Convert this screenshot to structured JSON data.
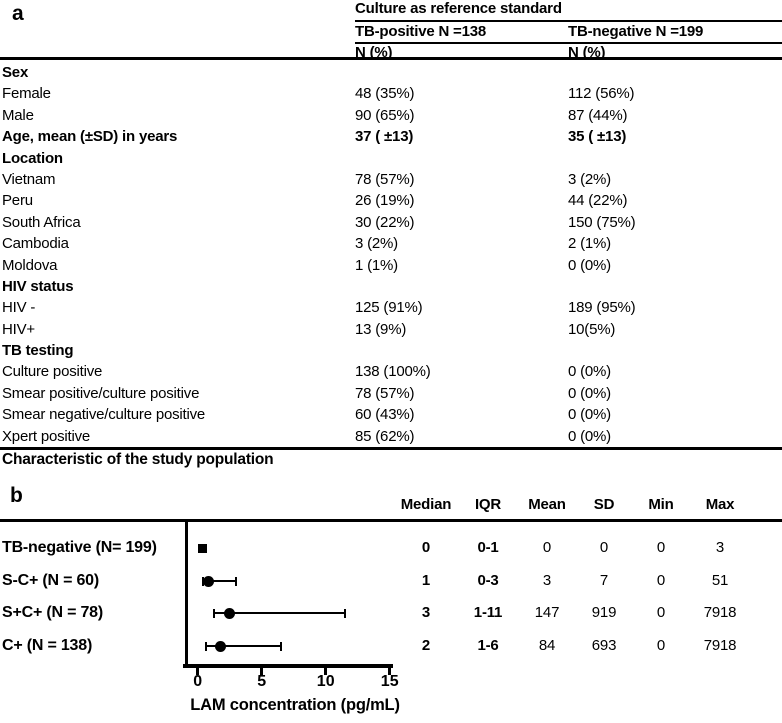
{
  "panel_a": {
    "letter": "a",
    "header": {
      "span_title": "Culture as reference standard",
      "col_tb_positive": "TB-positive N =138",
      "col_tb_negative": "TB-negative N =199",
      "sub_col1": "N (%)",
      "sub_col2": "N (%)"
    },
    "rows": [
      {
        "label": "Sex",
        "v1": "",
        "v2": ""
      },
      {
        "label": "Female",
        "v1": "48 (35%)",
        "v2": "112 (56%)"
      },
      {
        "label": "Male",
        "v1": "90 (65%)",
        "v2": "87 (44%)"
      },
      {
        "label": "Age, mean (±SD) in years",
        "v1": "37 ( ±13)",
        "v2": "35 ( ±13)"
      },
      {
        "label": "Location",
        "v1": "",
        "v2": ""
      },
      {
        "label": "Vietnam",
        "v1": "78 (57%)",
        "v2": "3 (2%)"
      },
      {
        "label": "Peru",
        "v1": "26 (19%)",
        "v2": "44 (22%)"
      },
      {
        "label": "South Africa",
        "v1": "30 (22%)",
        "v2": "150 (75%)"
      },
      {
        "label": "Cambodia",
        "v1": "3 (2%)",
        "v2": "2 (1%)"
      },
      {
        "label": "Moldova",
        "v1": "1 (1%)",
        "v2": "0 (0%)"
      },
      {
        "label": "HIV status",
        "v1": "",
        "v2": ""
      },
      {
        "label": "HIV -",
        "v1": "125 (91%)",
        "v2": "189 (95%)"
      },
      {
        "label": "HIV+",
        "v1": "13 (9%)",
        "v2": "10(5%)"
      },
      {
        "label": "TB testing",
        "v1": "",
        "v2": ""
      },
      {
        "label": "Culture positive",
        "v1": "138 (100%)",
        "v2": "0 (0%)"
      },
      {
        "label": "Smear positive/culture positive",
        "v1": "78 (57%)",
        "v2": "0 (0%)"
      },
      {
        "label": "Smear negative/culture positive",
        "v1": "60 (43%)",
        "v2": "0 (0%)"
      },
      {
        "label": "Xpert positive",
        "v1": "85 (62%)",
        "v2": "0 (0%)"
      }
    ],
    "caption": "Characteristic of the study population"
  },
  "panel_b": {
    "letter": "b",
    "stat_headers": {
      "median": "Median",
      "iqr": "IQR",
      "mean": "Mean",
      "sd": "SD",
      "min": "Min",
      "max": "Max"
    }
  },
  "chart_data": {
    "type": "scatter",
    "subtype": "dot-whisker-forest",
    "xlabel": "LAM concentration (pg/mL)",
    "xlim": [
      0,
      15
    ],
    "xticks": [
      "0",
      "5",
      "10",
      "15"
    ],
    "grid": false,
    "marker_color": "#000000",
    "groups": [
      {
        "label": "TB-negative (N= 199)",
        "marker": "square",
        "point": 0.35,
        "whisker_lo": 0,
        "whisker_hi": 0.6,
        "stats": {
          "median": "0",
          "iqr": "0-1",
          "mean": "0",
          "sd": "0",
          "min": "0",
          "max": "3"
        }
      },
      {
        "label": "S-C+ (N = 60)",
        "marker": "circle",
        "point": 0.85,
        "whisker_lo": 0.45,
        "whisker_hi": 3.0,
        "stats": {
          "median": "1",
          "iqr": "0-3",
          "mean": "3",
          "sd": "7",
          "min": "0",
          "max": "51"
        }
      },
      {
        "label": "S+C+ (N = 78)",
        "marker": "circle",
        "point": 2.5,
        "whisker_lo": 1.3,
        "whisker_hi": 11.5,
        "stats": {
          "median": "3",
          "iqr": "1-11",
          "mean": "147",
          "sd": "919",
          "min": "0",
          "max": "7918"
        }
      },
      {
        "label": "C+ (N = 138)",
        "marker": "circle",
        "point": 1.75,
        "whisker_lo": 0.65,
        "whisker_hi": 6.5,
        "stats": {
          "median": "2",
          "iqr": "1-6",
          "mean": "84",
          "sd": "693",
          "min": "0",
          "max": "7918"
        }
      }
    ]
  }
}
